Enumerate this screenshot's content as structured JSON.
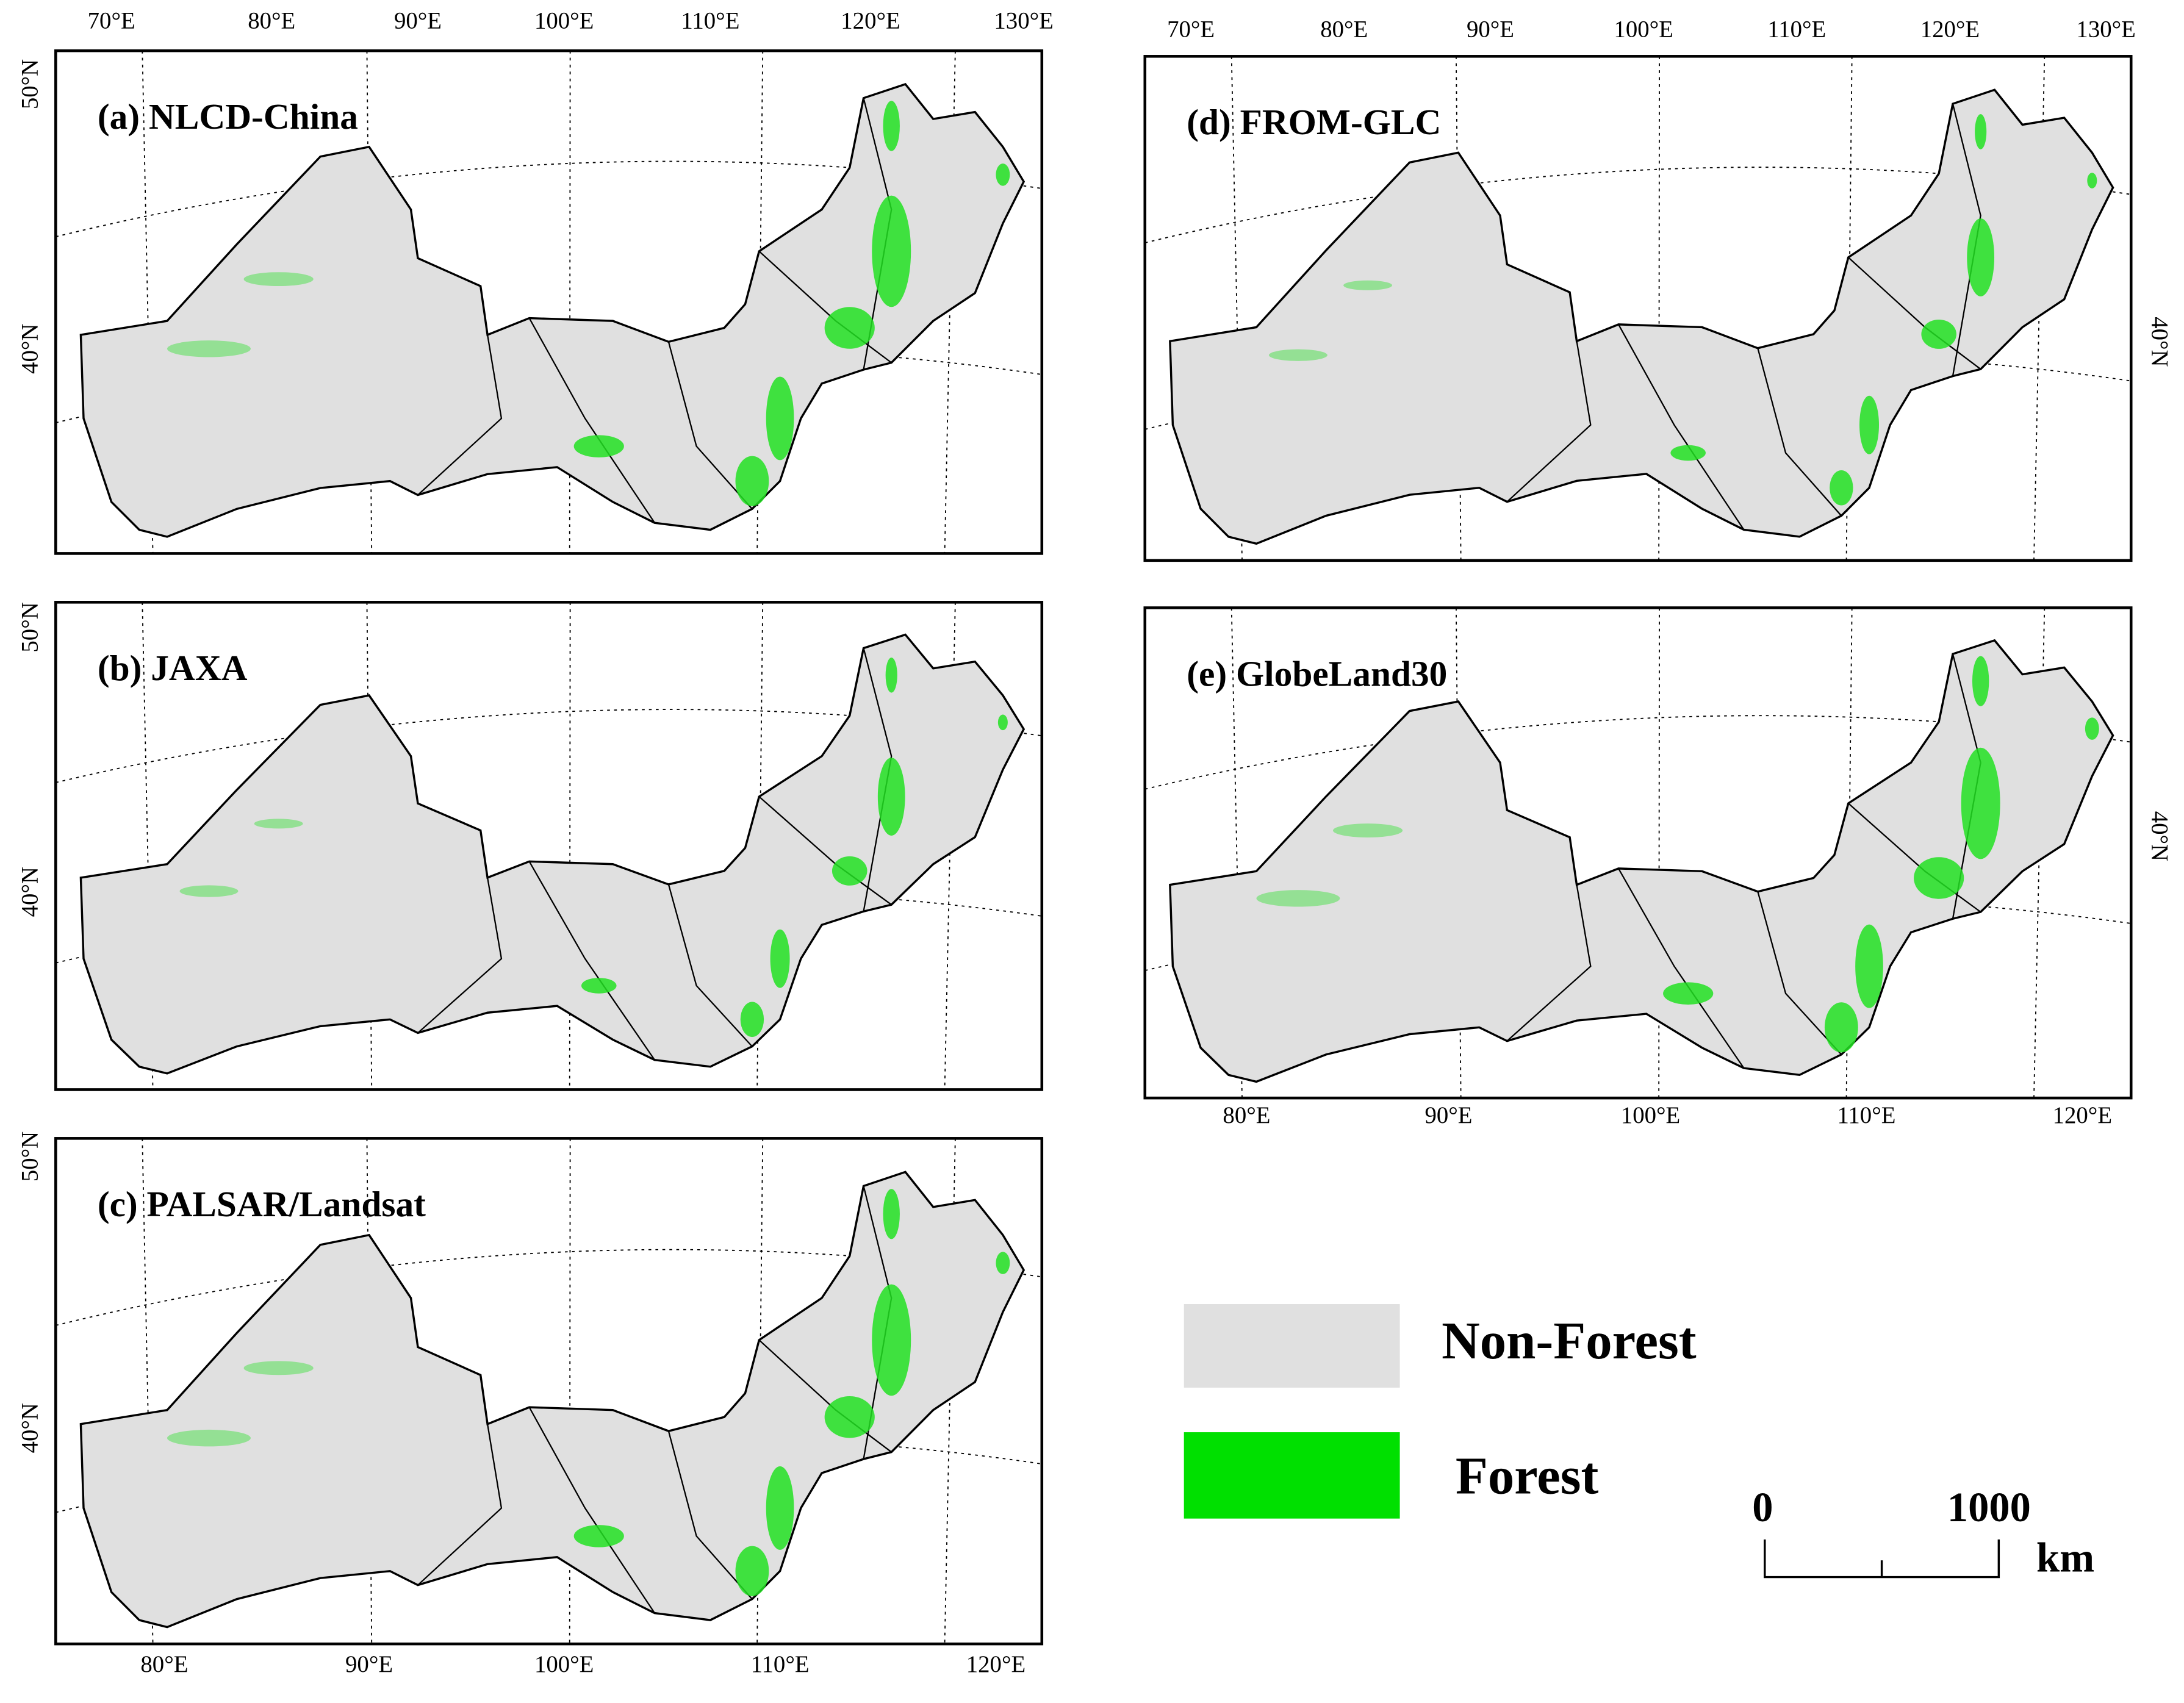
{
  "panels": [
    {
      "title": "(a) NLCD-China",
      "top_labels": [
        "70°E",
        "80°E",
        "90°E",
        "100°E",
        "110°E",
        "120°E",
        "130°E"
      ],
      "bottom_labels": [],
      "lat_labels": [
        "50°N",
        "40°N"
      ]
    },
    {
      "title": "(b) JAXA",
      "top_labels": [],
      "bottom_labels": [],
      "lat_labels": [
        "50°N",
        "40°N"
      ]
    },
    {
      "title": "(c) PALSAR/Landsat",
      "top_labels": [],
      "bottom_labels": [
        "80°E",
        "90°E",
        "100°E",
        "110°E",
        "120°E"
      ],
      "lat_labels": [
        "50°N",
        "40°N"
      ]
    },
    {
      "title": "(d) FROM-GLC",
      "top_labels": [
        "70°E",
        "80°E",
        "90°E",
        "100°E",
        "110°E",
        "120°E",
        "130°E"
      ],
      "bottom_labels": [],
      "lat_labels": [
        "40°N"
      ]
    },
    {
      "title": "(e) GlobeLand30",
      "top_labels": [],
      "bottom_labels": [
        "80°E",
        "90°E",
        "100°E",
        "110°E",
        "120°E"
      ],
      "lat_labels": [
        "40°N"
      ]
    }
  ],
  "legend": {
    "items": [
      "Non-Forest",
      "Forest"
    ]
  },
  "scale_bar": {
    "labels": [
      "0",
      "1000"
    ],
    "unit": "km"
  }
}
